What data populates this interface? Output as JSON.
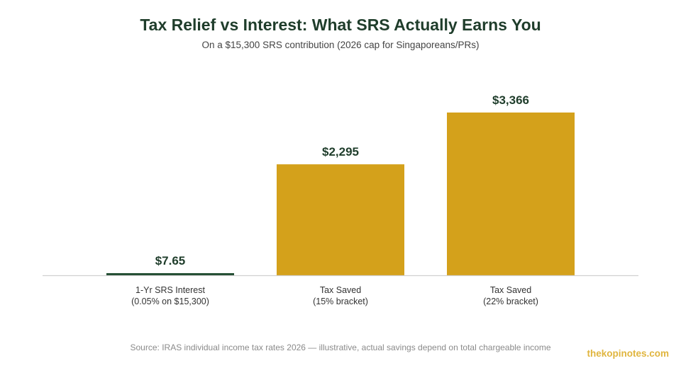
{
  "title": "Tax Relief vs Interest: What SRS Actually Earns You",
  "subtitle": "On a $15,300 SRS contribution (2026 cap for Singaporeans/PRs)",
  "source": "Source: IRAS individual income tax rates 2026 — illustrative, actual savings depend on total chargeable income",
  "brand": "thekopinotes.com",
  "colors": {
    "title": "#1f3d2b",
    "interest_bar": "#1e4a2e",
    "tax_bar": "#d4a11b",
    "value_label": "#1f3d2b",
    "baseline": "#d0d0d0",
    "brand": "#e0b53e"
  },
  "chart_data": {
    "type": "bar",
    "title": "Tax Relief vs Interest: What SRS Actually Earns You",
    "subtitle": "On a $15,300 SRS contribution (2026 cap for Singaporeans/PRs)",
    "categories": [
      [
        "1-Yr SRS Interest",
        "(0.05% on $15,300)"
      ],
      [
        "Tax Saved",
        "(15% bracket)"
      ],
      [
        "Tax Saved",
        "(22% bracket)"
      ]
    ],
    "values": [
      7.65,
      2295,
      3366
    ],
    "data_labels": [
      "$7.65",
      "$2,295",
      "$3,366"
    ],
    "bar_colors": [
      "#1e4a2e",
      "#d4a11b",
      "#d4a11b"
    ],
    "xlabel": "",
    "ylabel": "",
    "ylim": [
      0,
      3366
    ],
    "grid": false,
    "legend": "none"
  }
}
